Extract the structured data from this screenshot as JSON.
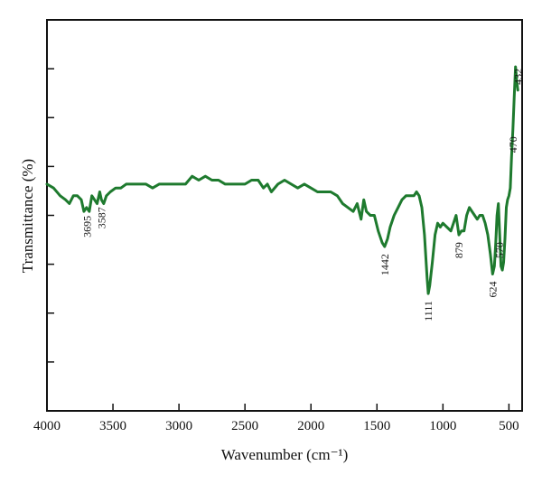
{
  "chart_data": {
    "type": "line",
    "title": "",
    "xlabel": "Wavenumber (cm⁻¹)",
    "ylabel": "Transmittance (%)",
    "xlim": [
      4000,
      400
    ],
    "x_reversed": true,
    "x_ticks": [
      4000,
      3500,
      3000,
      2500,
      2000,
      1500,
      1000,
      500
    ],
    "y_tick_count": 7,
    "y_tick_labels_shown": false,
    "grid": false,
    "legend": "none",
    "line_color": "#1e7a2e",
    "series": [
      {
        "x": [
          4000,
          3950,
          3900,
          3860,
          3830,
          3800,
          3770,
          3740,
          3720,
          3700,
          3680,
          3660,
          3640,
          3620,
          3600,
          3587,
          3570,
          3550,
          3520,
          3480,
          3440,
          3400,
          3350,
          3300,
          3250,
          3200,
          3150,
          3100,
          3050,
          3000,
          2950,
          2900,
          2850,
          2800,
          2750,
          2700,
          2650,
          2600,
          2550,
          2500,
          2450,
          2400,
          2360,
          2330,
          2300,
          2250,
          2200,
          2150,
          2100,
          2050,
          2000,
          1950,
          1900,
          1850,
          1800,
          1760,
          1720,
          1680,
          1650,
          1620,
          1600,
          1580,
          1550,
          1520,
          1490,
          1460,
          1442,
          1420,
          1400,
          1370,
          1340,
          1310,
          1280,
          1250,
          1220,
          1200,
          1180,
          1160,
          1140,
          1120,
          1111,
          1100,
          1080,
          1060,
          1040,
          1020,
          1000,
          970,
          940,
          920,
          900,
          879,
          860,
          840,
          820,
          800,
          780,
          760,
          740,
          720,
          700,
          680,
          660,
          640,
          624,
          610,
          600,
          590,
          580,
          570,
          560,
          550,
          540,
          530,
          520,
          510,
          500,
          490,
          480,
          470,
          460,
          450,
          440,
          432
        ],
        "y": [
          58,
          57,
          55,
          54,
          53,
          55,
          55,
          54,
          51,
          52,
          51,
          55,
          54,
          53,
          56,
          54,
          53,
          55,
          56,
          57,
          57,
          58,
          58,
          58,
          58,
          57,
          58,
          58,
          58,
          58,
          58,
          60,
          59,
          60,
          59,
          59,
          58,
          58,
          58,
          58,
          59,
          59,
          57,
          58,
          56,
          58,
          59,
          58,
          57,
          58,
          57,
          56,
          56,
          56,
          55,
          53,
          52,
          51,
          53,
          49,
          54,
          51,
          50,
          50,
          46,
          43,
          42,
          44,
          47,
          50,
          52,
          54,
          55,
          55,
          55,
          56,
          55,
          52,
          45,
          34,
          30,
          32,
          38,
          45,
          48,
          47,
          48,
          47,
          46,
          48,
          50,
          45,
          46,
          46,
          50,
          52,
          51,
          50,
          49,
          50,
          50,
          48,
          45,
          40,
          35,
          37,
          43,
          50,
          53,
          45,
          37,
          36,
          38,
          44,
          52,
          54,
          55,
          57,
          65,
          72,
          80,
          88,
          84,
          82
        ]
      }
    ],
    "annotations": [
      {
        "text": "3695",
        "x": 3695
      },
      {
        "text": "3587",
        "x": 3587
      },
      {
        "text": "1442",
        "x": 1442
      },
      {
        "text": "1111",
        "x": 1111
      },
      {
        "text": "879",
        "x": 879
      },
      {
        "text": "624",
        "x": 624
      },
      {
        "text": "570",
        "x": 570
      },
      {
        "text": "470",
        "x": 470
      },
      {
        "text": "432",
        "x": 432
      }
    ]
  }
}
